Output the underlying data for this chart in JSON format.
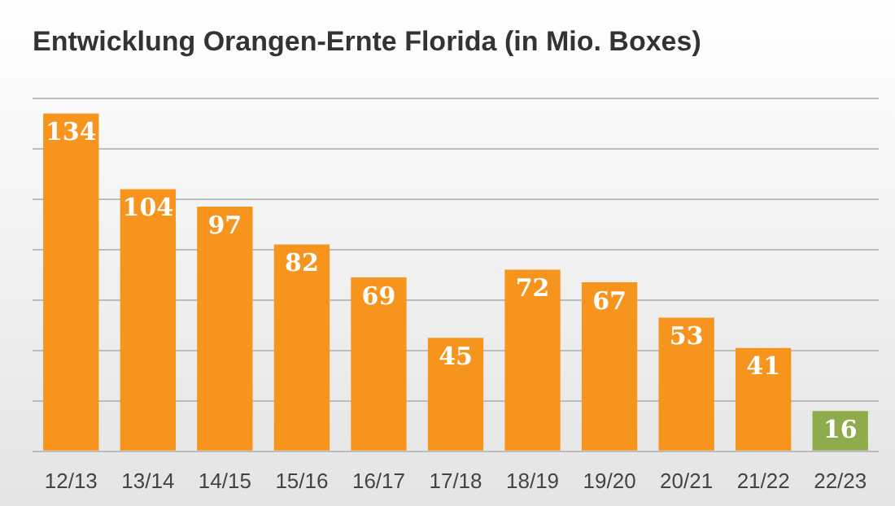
{
  "chart_data": {
    "type": "bar",
    "title": "Entwicklung Orangen-Ernte Florida (in Mio. Boxes)",
    "categories": [
      "12/13",
      "13/14",
      "14/15",
      "15/16",
      "16/17",
      "17/18",
      "18/19",
      "19/20",
      "20/21",
      "21/22",
      "22/23"
    ],
    "values": [
      134,
      104,
      97,
      82,
      69,
      45,
      72,
      67,
      53,
      41,
      16
    ],
    "colors": [
      "#f7941d",
      "#f7941d",
      "#f7941d",
      "#f7941d",
      "#f7941d",
      "#f7941d",
      "#f7941d",
      "#f7941d",
      "#f7941d",
      "#f7941d",
      "#8fac4c"
    ],
    "ylim": [
      0,
      140
    ],
    "yticks": [
      {
        "value": 0,
        "label": null
      },
      {
        "value": 20,
        "label": null
      },
      {
        "value": 40,
        "label": null
      },
      {
        "value": 60,
        "label": null
      },
      {
        "value": 80,
        "label": null
      },
      {
        "value": 100,
        "label": null
      },
      {
        "value": 120,
        "label": null
      },
      {
        "value": 140,
        "label": null
      }
    ],
    "grid": "y",
    "tick_labels": "x",
    "data_labels": true,
    "legend": false
  }
}
